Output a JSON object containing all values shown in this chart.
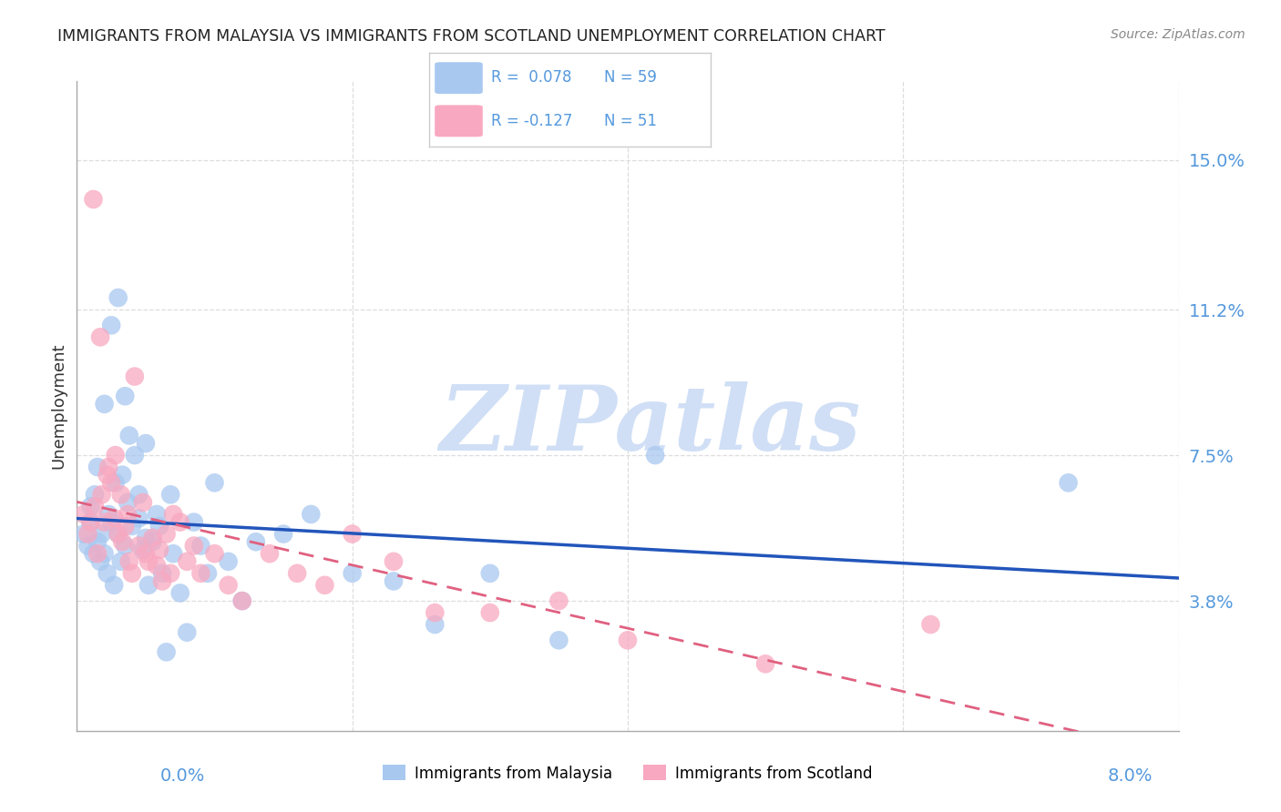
{
  "title": "IMMIGRANTS FROM MALAYSIA VS IMMIGRANTS FROM SCOTLAND UNEMPLOYMENT CORRELATION CHART",
  "source": "Source: ZipAtlas.com",
  "ylabel": "Unemployment",
  "yticks": [
    3.8,
    7.5,
    11.2,
    15.0
  ],
  "ytick_labels": [
    "3.8%",
    "7.5%",
    "11.2%",
    "15.0%"
  ],
  "xtick_labels": [
    "0.0%",
    "8.0%"
  ],
  "xlim": [
    0.0,
    8.0
  ],
  "ylim": [
    0.5,
    17.0
  ],
  "series1_label": "Immigrants from Malaysia",
  "series1_R": "0.078",
  "series1_N": "59",
  "series1_color": "#a8c8f0",
  "series1_trendcolor": "#2255bb",
  "series2_label": "Immigrants from Scotland",
  "series2_R": "-0.127",
  "series2_N": "51",
  "series2_color": "#f8a8c0",
  "series2_trendcolor": "#e06080",
  "watermark": "ZIPatlas",
  "watermark_color": "#d0dff5",
  "background_color": "#ffffff",
  "grid_color": "#dddddd",
  "title_color": "#222222",
  "axis_label_color": "#5599dd",
  "legend_R1": "R =  0.078",
  "legend_N1": "N = 59",
  "legend_R2": "R = -0.127",
  "legend_N2": "N = 51",
  "malaysia_x": [
    0.05,
    0.08,
    0.1,
    0.1,
    0.12,
    0.13,
    0.15,
    0.15,
    0.17,
    0.18,
    0.2,
    0.2,
    0.22,
    0.23,
    0.25,
    0.25,
    0.27,
    0.28,
    0.3,
    0.3,
    0.32,
    0.33,
    0.35,
    0.35,
    0.37,
    0.38,
    0.4,
    0.42,
    0.45,
    0.45,
    0.48,
    0.5,
    0.5,
    0.52,
    0.55,
    0.58,
    0.6,
    0.62,
    0.65,
    0.68,
    0.7,
    0.75,
    0.8,
    0.85,
    0.9,
    0.95,
    1.0,
    1.1,
    1.2,
    1.3,
    1.5,
    1.7,
    2.0,
    2.3,
    2.6,
    3.0,
    3.5,
    4.2,
    7.2
  ],
  "malaysia_y": [
    5.5,
    5.2,
    5.8,
    6.2,
    5.0,
    6.5,
    5.3,
    7.2,
    4.8,
    5.5,
    5.0,
    8.8,
    4.5,
    6.0,
    5.8,
    10.8,
    4.2,
    6.8,
    5.5,
    11.5,
    4.8,
    7.0,
    5.2,
    9.0,
    6.3,
    8.0,
    5.7,
    7.5,
    5.9,
    6.5,
    5.1,
    5.4,
    7.8,
    4.2,
    5.3,
    6.0,
    5.7,
    4.5,
    2.5,
    6.5,
    5.0,
    4.0,
    3.0,
    5.8,
    5.2,
    4.5,
    6.8,
    4.8,
    3.8,
    5.3,
    5.5,
    6.0,
    4.5,
    4.3,
    3.2,
    4.5,
    2.8,
    7.5,
    6.8
  ],
  "scotland_x": [
    0.05,
    0.08,
    0.1,
    0.12,
    0.13,
    0.15,
    0.17,
    0.18,
    0.2,
    0.22,
    0.23,
    0.25,
    0.27,
    0.28,
    0.3,
    0.32,
    0.33,
    0.35,
    0.37,
    0.38,
    0.4,
    0.42,
    0.45,
    0.48,
    0.5,
    0.52,
    0.55,
    0.58,
    0.6,
    0.62,
    0.65,
    0.68,
    0.7,
    0.75,
    0.8,
    0.85,
    0.9,
    1.0,
    1.1,
    1.2,
    1.4,
    1.6,
    1.8,
    2.0,
    2.3,
    2.6,
    3.0,
    3.5,
    4.0,
    5.0,
    6.2
  ],
  "scotland_y": [
    6.0,
    5.5,
    5.8,
    14.0,
    6.2,
    5.0,
    10.5,
    6.5,
    5.8,
    7.0,
    7.2,
    6.8,
    5.9,
    7.5,
    5.5,
    6.5,
    5.3,
    5.7,
    6.0,
    4.8,
    4.5,
    9.5,
    5.2,
    6.3,
    5.0,
    4.8,
    5.4,
    4.7,
    5.1,
    4.3,
    5.5,
    4.5,
    6.0,
    5.8,
    4.8,
    5.2,
    4.5,
    5.0,
    4.2,
    3.8,
    5.0,
    4.5,
    4.2,
    5.5,
    4.8,
    3.5,
    3.5,
    3.8,
    2.8,
    2.2,
    3.2
  ]
}
